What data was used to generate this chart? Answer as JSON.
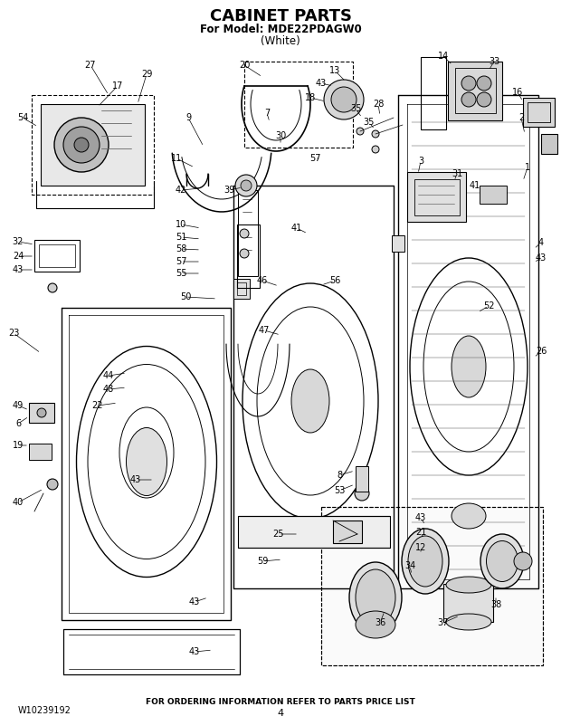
{
  "title_line1": "CABINET PARTS",
  "title_line2": "For Model: MDE22PDAGW0",
  "title_line3": "(White)",
  "footer_left": "W10239192",
  "footer_center": "FOR ORDERING INFORMATION REFER TO PARTS PRICE LIST",
  "footer_page": "4",
  "bg_color": "#ffffff",
  "fig_width": 6.2,
  "fig_height": 8.02,
  "dpi": 100
}
